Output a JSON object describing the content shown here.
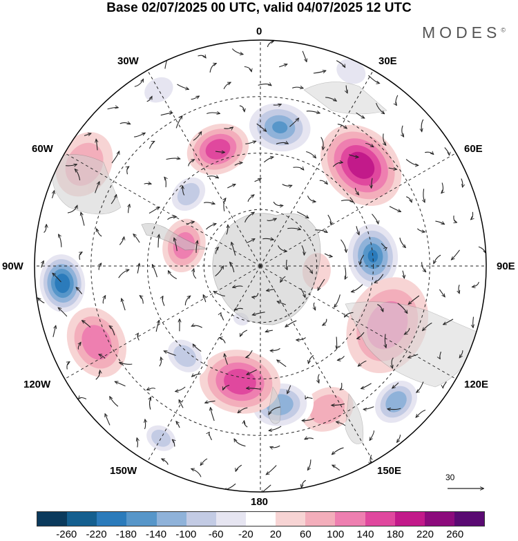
{
  "title": "Base 02/07/2025 00 UTC, valid 04/07/2025 12 UTC",
  "brand": "MODES",
  "brand_mark": "©",
  "longitudes": {
    "top": "0",
    "bottom": "180",
    "left": "90W",
    "right": "90E",
    "nw1": "30W",
    "nw2": "60W",
    "ne1": "30E",
    "ne2": "60E",
    "sw1": "120W",
    "sw2": "150W",
    "se1": "120E",
    "se2": "150E"
  },
  "vector_reference": "30",
  "colorbar": {
    "colors": [
      "#0b3a5c",
      "#145f8f",
      "#2b7bbb",
      "#5796c9",
      "#8fb2d9",
      "#c3cbe4",
      "#e6e5f1",
      "#ffffff",
      "#f7d4d4",
      "#f3aebb",
      "#ee7fb0",
      "#e0489e",
      "#c21a8a",
      "#8c0b7c",
      "#5a0a72"
    ],
    "labels": [
      "-260",
      "-220",
      "-180",
      "-140",
      "-100",
      "-60",
      "-20",
      "20",
      "60",
      "100",
      "140",
      "180",
      "220",
      "260"
    ]
  },
  "anomaly_cells": [
    {
      "lon": 8,
      "dist": 0.62,
      "value": -160,
      "r": 0.17
    },
    {
      "lon": 45,
      "dist": 0.63,
      "value": 200,
      "r": 0.2
    },
    {
      "lon": 85,
      "dist": 0.5,
      "value": -200,
      "r": 0.17
    },
    {
      "lon": 115,
      "dist": 0.62,
      "value": 100,
      "r": 0.22
    },
    {
      "lon": 135,
      "dist": 0.85,
      "value": -140,
      "r": 0.13
    },
    {
      "lon": 155,
      "dist": 0.7,
      "value": 60,
      "r": 0.12
    },
    {
      "lon": 172,
      "dist": 0.62,
      "value": -140,
      "r": 0.15
    },
    {
      "lon": -170,
      "dist": 0.52,
      "value": 140,
      "r": 0.18
    },
    {
      "lon": -140,
      "dist": 0.52,
      "value": -100,
      "r": 0.11
    },
    {
      "lon": -150,
      "dist": 0.88,
      "value": -100,
      "r": 0.09
    },
    {
      "lon": -115,
      "dist": 0.8,
      "value": 120,
      "r": 0.16
    },
    {
      "lon": -95,
      "dist": 0.88,
      "value": -220,
      "r": 0.15
    },
    {
      "lon": -75,
      "dist": 0.35,
      "value": 100,
      "r": 0.12
    },
    {
      "lon": -45,
      "dist": 0.45,
      "value": -100,
      "r": 0.11
    },
    {
      "lon": -60,
      "dist": 0.9,
      "value": 60,
      "r": 0.15
    },
    {
      "lon": -20,
      "dist": 0.55,
      "value": 140,
      "r": 0.14
    },
    {
      "lon": -30,
      "dist": 0.9,
      "value": -60,
      "r": 0.1
    },
    {
      "lon": 25,
      "dist": 0.95,
      "value": -60,
      "r": 0.1
    },
    {
      "lon": 95,
      "dist": 0.25,
      "value": 40,
      "r": 0.08
    },
    {
      "lon": -160,
      "dist": 0.25,
      "value": -40,
      "r": 0.07
    }
  ]
}
